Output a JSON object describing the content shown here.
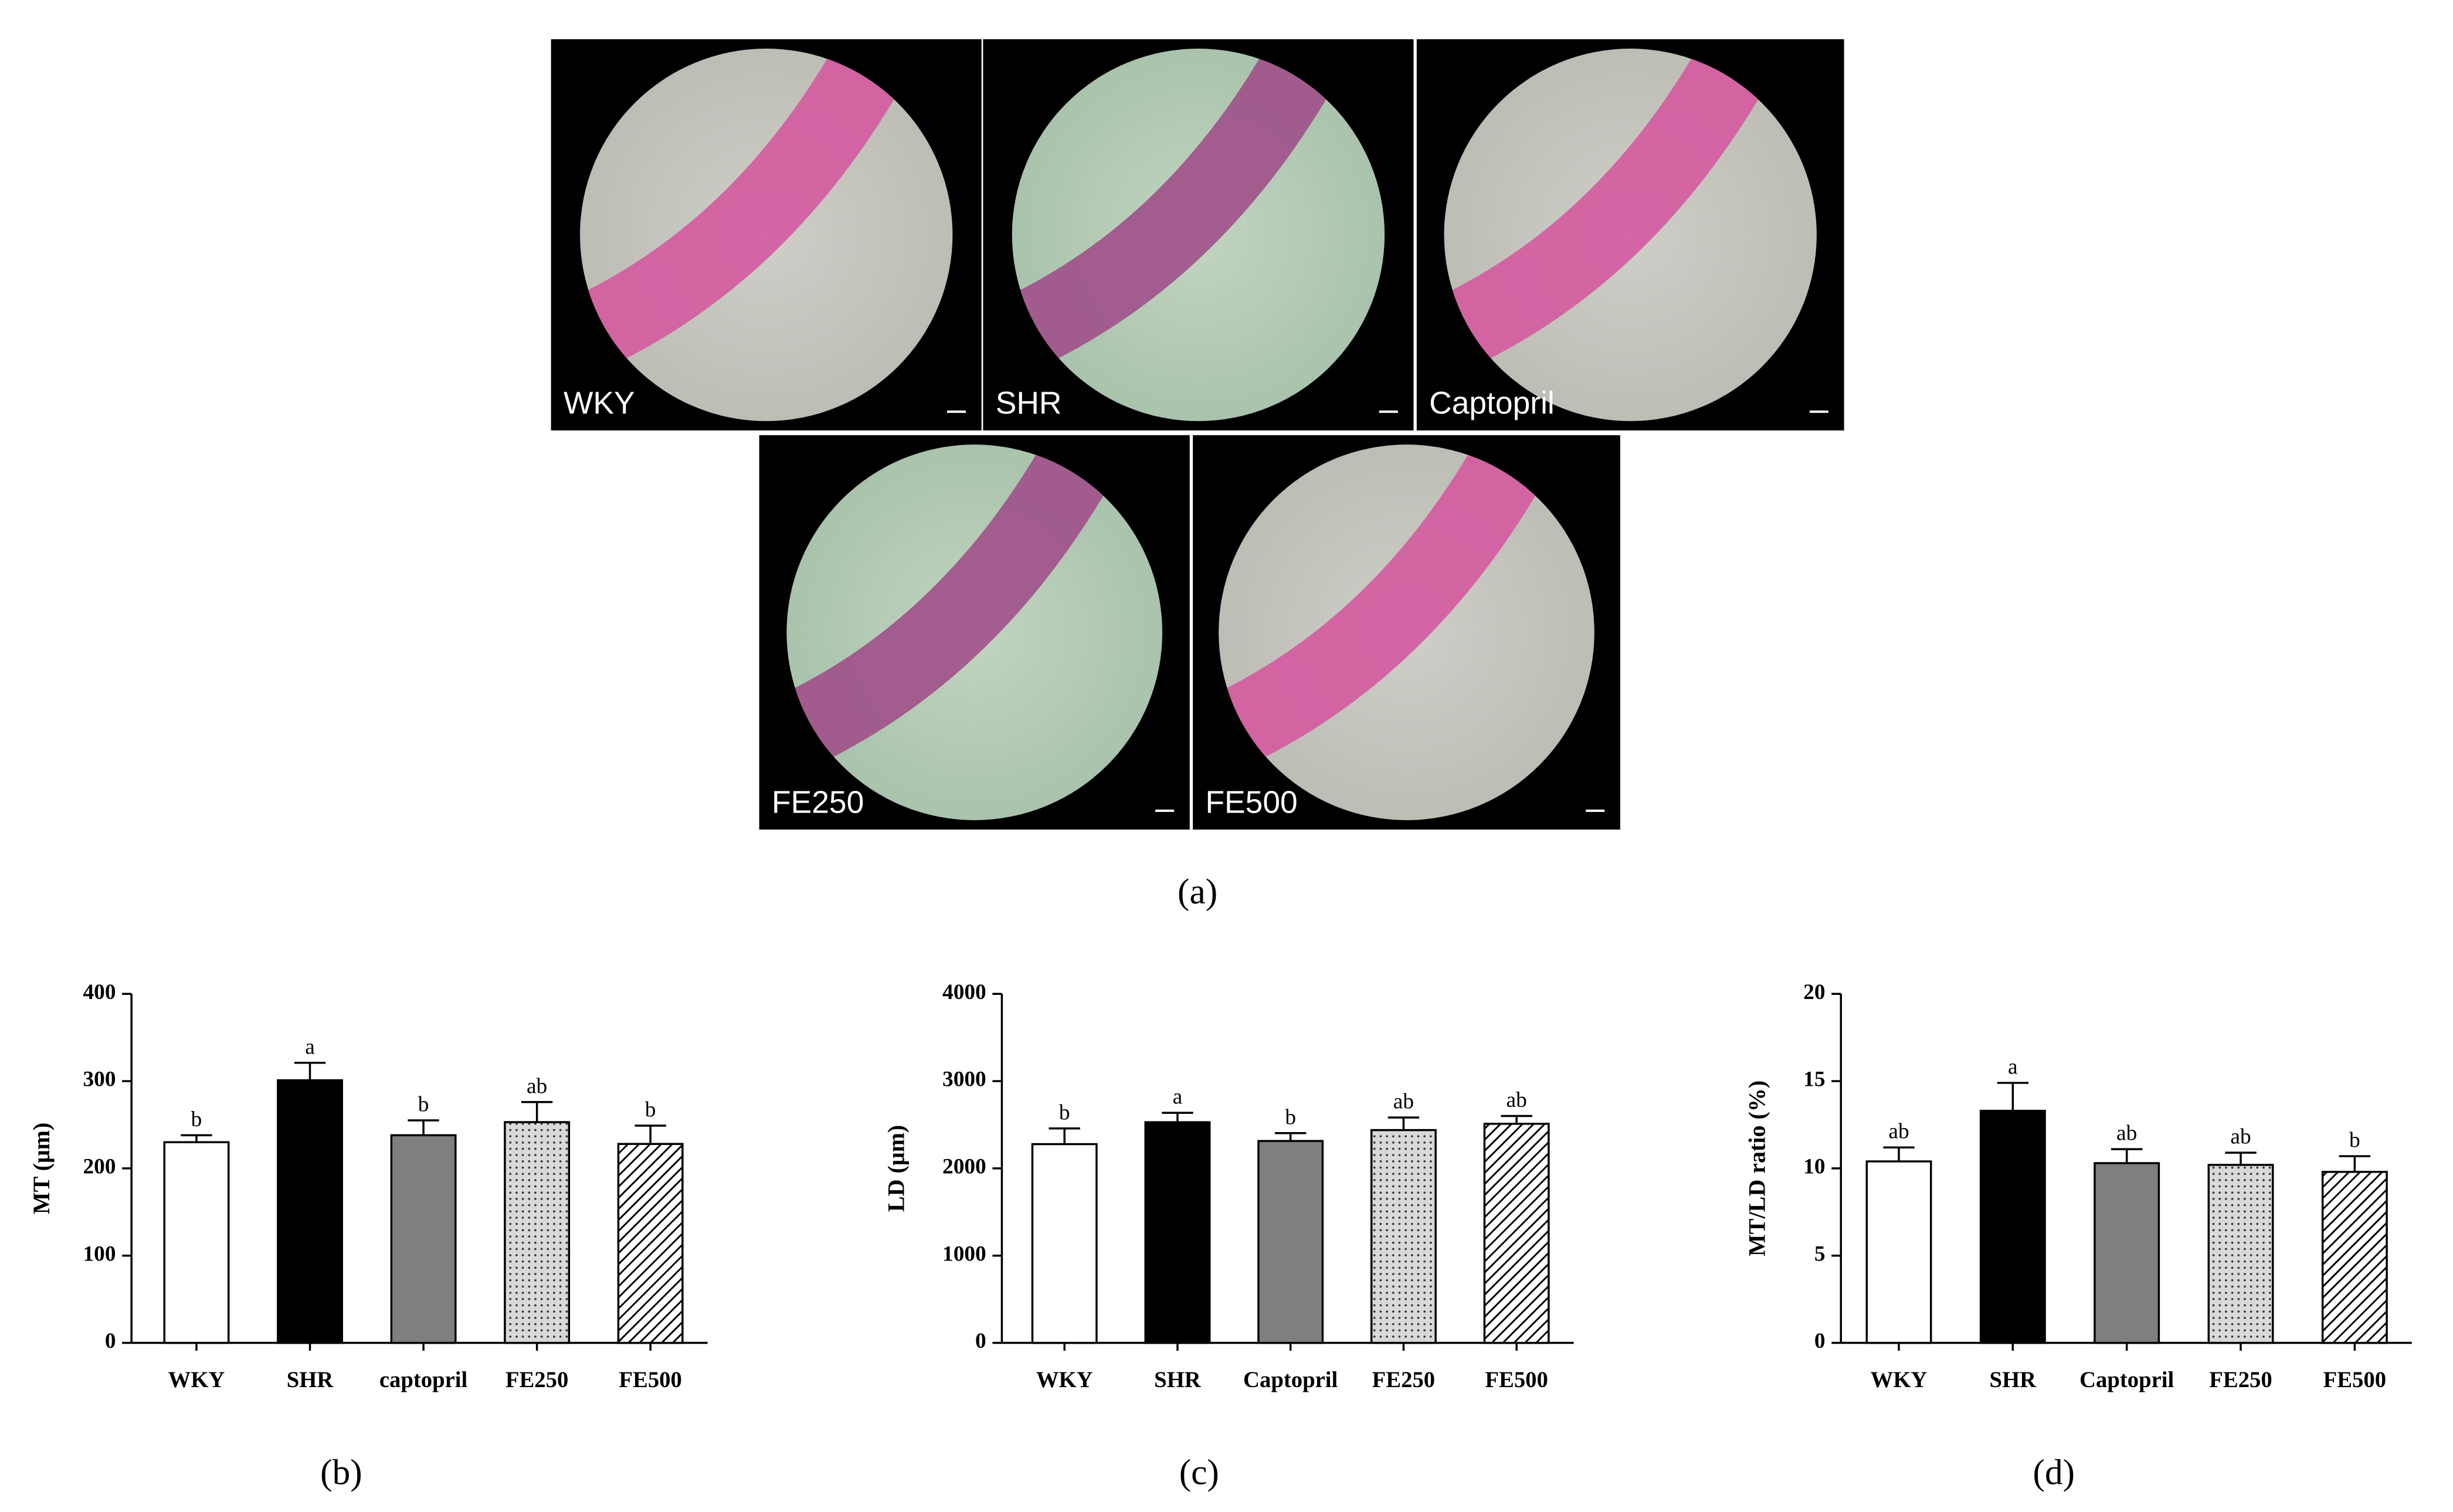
{
  "figure_a": {
    "images": [
      "WKY",
      "SHR",
      "Captopril",
      "FE250",
      "FE500"
    ],
    "label": "(a)"
  },
  "chart_data": [
    {
      "type": "bar",
      "panel_label": "(b)",
      "y_label": "MT (μm)",
      "categories": [
        "WKY",
        "SHR",
        "captopril",
        "FE250",
        "FE500"
      ],
      "values": [
        230,
        301,
        238,
        253,
        228
      ],
      "errors": [
        8,
        20,
        17,
        23,
        21
      ],
      "annotations": [
        "b",
        "a",
        "b",
        "ab",
        "b"
      ],
      "colors": [
        "#ffffff",
        "#000000",
        "#7f7f7f",
        "#d9d9d9",
        "#ffffff"
      ],
      "patterns": [
        "solid",
        "solid",
        "solid",
        "dots",
        "diagonal"
      ],
      "ylim": [
        0,
        400
      ],
      "yticks": [
        0,
        100,
        200,
        300,
        400
      ]
    },
    {
      "type": "bar",
      "panel_label": "(c)",
      "y_label": "LD (μm)",
      "categories": [
        "WKY",
        "SHR",
        "Captopril",
        "FE250",
        "FE500"
      ],
      "values": [
        2278,
        2529,
        2314,
        2439,
        2511
      ],
      "errors": [
        180,
        108,
        90,
        144,
        90
      ],
      "annotations": [
        "b",
        "a",
        "b",
        "ab",
        "ab"
      ],
      "colors": [
        "#ffffff",
        "#000000",
        "#7f7f7f",
        "#d9d9d9",
        "#ffffff"
      ],
      "patterns": [
        "solid",
        "solid",
        "solid",
        "dots",
        "diagonal"
      ],
      "ylim": [
        0,
        4000
      ],
      "yticks": [
        0,
        1000,
        2000,
        3000,
        4000
      ]
    },
    {
      "type": "bar",
      "panel_label": "(d)",
      "y_label": "MT/LD ratio (%)",
      "categories": [
        "WKY",
        "SHR",
        "Captopril",
        "FE250",
        "FE500"
      ],
      "values": [
        10.4,
        13.3,
        10.3,
        10.2,
        9.8
      ],
      "errors": [
        0.8,
        1.6,
        0.8,
        0.7,
        0.9
      ],
      "annotations": [
        "ab",
        "a",
        "ab",
        "ab",
        "b"
      ],
      "colors": [
        "#ffffff",
        "#000000",
        "#7f7f7f",
        "#d9d9d9",
        "#ffffff"
      ],
      "patterns": [
        "solid",
        "solid",
        "solid",
        "dots",
        "diagonal"
      ],
      "ylim": [
        0,
        20
      ],
      "yticks": [
        0,
        5,
        10,
        15,
        20
      ]
    }
  ]
}
